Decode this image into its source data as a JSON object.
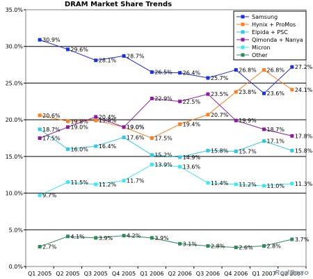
{
  "chart_data": {
    "type": "line",
    "title": "DRAM Market Share Trends",
    "categories": [
      "Q1 2005",
      "Q2 2005",
      "Q3 2005",
      "Q4 2005",
      "Q1 2006",
      "Q2 2006",
      "Q3 2006",
      "Q4 2006",
      "Q1 2007",
      "Q2 2007"
    ],
    "ylim": [
      0,
      35
    ],
    "ytick_step": 5,
    "ytick_labels": [
      "0.0%",
      "5.0%",
      "10.0%",
      "15.0%",
      "20.0%",
      "25.0%",
      "30.0%",
      "35.0%"
    ],
    "grid": "horizontal",
    "legend": "top-right",
    "series": [
      {
        "name": "Samsung",
        "color": "#1b2ee8",
        "marker": "square",
        "values": [
          30.9,
          29.6,
          28.1,
          28.7,
          26.5,
          26.4,
          25.7,
          26.8,
          23.6,
          27.2
        ],
        "labels": [
          "30.9%",
          "29.6%",
          "28.1%",
          "28.7%",
          "26.5%",
          "26.4%",
          "25.7%",
          "26.8%",
          "23.6%",
          "27.2%"
        ]
      },
      {
        "name": "Hynix + ProMos",
        "color": "#ff7f1f",
        "marker": "square",
        "values": [
          20.6,
          19.8,
          19.9,
          19.0,
          17.5,
          19.4,
          20.7,
          23.8,
          26.8,
          24.1
        ],
        "labels": [
          "20.6%",
          "19.8%",
          "19.9%",
          "19.0%",
          "17.5%",
          "19.4%",
          "20.7%",
          "23.8%",
          "26.8%",
          "24.1%"
        ]
      },
      {
        "name": "Elpida + PSC",
        "color": "#2fc8e6",
        "marker": "square",
        "values": [
          18.7,
          16.0,
          16.4,
          17.6,
          15.2,
          14.9,
          15.8,
          15.7,
          17.1,
          15.8
        ],
        "labels": [
          "18.7%",
          "16.0%",
          "16.4%",
          "17.6%",
          "15.2%",
          "14.9%",
          "15.8%",
          "15.7%",
          "17.1%",
          "15.8%"
        ]
      },
      {
        "name": "Qimonda + Nanya",
        "color": "#8b1a9e",
        "marker": "square",
        "values": [
          17.5,
          19.0,
          20.4,
          19.0,
          22.9,
          22.5,
          23.5,
          19.9,
          18.7,
          17.8
        ],
        "labels": [
          "17.5%",
          "19.0%",
          "20.4%",
          "19.0%",
          "22.9%",
          "22.5%",
          "23.5%",
          "19.9%",
          "18.7%",
          "17.8%"
        ]
      },
      {
        "name": "Micron",
        "color": "#3be8ee",
        "marker": "square",
        "values": [
          9.7,
          11.5,
          11.2,
          11.7,
          13.9,
          13.6,
          11.4,
          11.2,
          11.0,
          11.3
        ],
        "labels": [
          "9.7%",
          "11.5%",
          "11.2%",
          "11.7%",
          "13.9%",
          "13.6%",
          "11.4%",
          "11.2%",
          "11.0%",
          "11.3%"
        ]
      },
      {
        "name": "Other",
        "color": "#2e8a5c",
        "marker": "square",
        "values": [
          2.7,
          4.1,
          3.9,
          4.2,
          3.9,
          3.1,
          2.8,
          2.6,
          2.8,
          3.7
        ],
        "labels": [
          "2.7%",
          "4.1%",
          "3.9%",
          "4.2%",
          "3.9%",
          "3.1%",
          "2.8%",
          "2.6%",
          "2.8%",
          "3.7%"
        ]
      }
    ]
  },
  "watermark": "RedBoxo"
}
